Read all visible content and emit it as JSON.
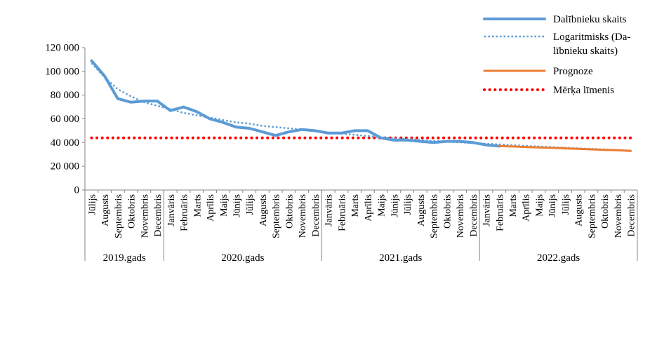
{
  "chart_data": {
    "type": "line",
    "y_ticks": [
      "0",
      "20 000",
      "40 000",
      "60 000",
      "80 000",
      "100 000",
      "120 000"
    ],
    "ylim": [
      0,
      120000
    ],
    "categories": [
      "Jūlijs",
      "Augusts",
      "Septembris",
      "Oktobris",
      "Novembris",
      "Decembris",
      "Janvāris",
      "Februāris",
      "Marts",
      "Aprīlis",
      "Maijs",
      "Jūnijs",
      "Jūlijs",
      "Augusts",
      "Septembris",
      "Oktobris",
      "Novembris",
      "Decembris",
      "Janvāris",
      "Februāris",
      "Marts",
      "Aprīlis",
      "Maijs",
      "Jūnijs",
      "Jūlijs",
      "Augusts",
      "Septembris",
      "Oktobris",
      "Novembris",
      "Decembris",
      "Janvāris",
      "Februāris",
      "Marts",
      "Aprīlis",
      "Maijs",
      "Jūnijs",
      "Jūlijs",
      "Augusts",
      "Septembris",
      "Oktobris",
      "Novembris",
      "Decembris"
    ],
    "groups": [
      {
        "label": "2019.gads",
        "start": 0,
        "count": 6
      },
      {
        "label": "2020.gads",
        "start": 6,
        "count": 12
      },
      {
        "label": "2021.gads",
        "start": 18,
        "count": 12
      },
      {
        "label": "2022.gads",
        "start": 30,
        "count": 12
      }
    ],
    "series": [
      {
        "name": "Dalībnieku skaits",
        "color": "#5b9bd5",
        "style": "solid-thick",
        "values": [
          109000,
          96000,
          77000,
          74000,
          75000,
          75000,
          67000,
          70000,
          66000,
          60000,
          57000,
          53000,
          52000,
          49000,
          46000,
          49000,
          51000,
          50000,
          48000,
          48000,
          50000,
          50000,
          44000,
          42000,
          42000,
          41000,
          40000,
          41000,
          41000,
          40000,
          38000,
          37000,
          null,
          null,
          null,
          null,
          null,
          null,
          null,
          null,
          null,
          null
        ]
      },
      {
        "name": "Logaritmisks (Dalībnieku skaits)",
        "color": "#5b9bd5",
        "style": "dotted",
        "values": [
          107000,
          95000,
          85000,
          79000,
          74000,
          71000,
          68000,
          65000,
          63000,
          61000,
          59000,
          57000,
          56000,
          54000,
          53000,
          52000,
          51000,
          49500,
          48500,
          47500,
          46500,
          45500,
          44500,
          43700,
          43000,
          42200,
          41500,
          40800,
          40200,
          39600,
          39000,
          38400,
          37800,
          37200,
          36700,
          36200,
          35700,
          35200,
          34700,
          34200,
          33700,
          33200
        ]
      },
      {
        "name": "Prognoze",
        "color": "#ed7d31",
        "style": "solid",
        "values": [
          null,
          null,
          null,
          null,
          null,
          null,
          null,
          null,
          null,
          null,
          null,
          null,
          null,
          null,
          null,
          null,
          null,
          null,
          null,
          null,
          null,
          null,
          null,
          null,
          null,
          null,
          null,
          null,
          null,
          null,
          null,
          37000,
          36700,
          36300,
          35900,
          35500,
          35100,
          34700,
          34300,
          33900,
          33500,
          33000
        ]
      },
      {
        "name": "Mērķa līmenis",
        "color": "#ff0000",
        "style": "dotted-thick",
        "values": [
          44000,
          44000,
          44000,
          44000,
          44000,
          44000,
          44000,
          44000,
          44000,
          44000,
          44000,
          44000,
          44000,
          44000,
          44000,
          44000,
          44000,
          44000,
          44000,
          44000,
          44000,
          44000,
          44000,
          44000,
          44000,
          44000,
          44000,
          44000,
          44000,
          44000,
          44000,
          44000,
          44000,
          44000,
          44000,
          44000,
          44000,
          44000,
          44000,
          44000,
          44000,
          44000
        ]
      }
    ],
    "legend": {
      "position": "top-right",
      "entries": [
        {
          "lines": [
            "Dalībnieku skaits"
          ]
        },
        {
          "lines": [
            "Logaritmisks (Da-",
            "lībnieku skaits)"
          ]
        },
        {
          "lines": [
            "Prognoze"
          ]
        },
        {
          "lines": [
            "Mērķa līmenis"
          ]
        }
      ]
    },
    "grid": false
  }
}
